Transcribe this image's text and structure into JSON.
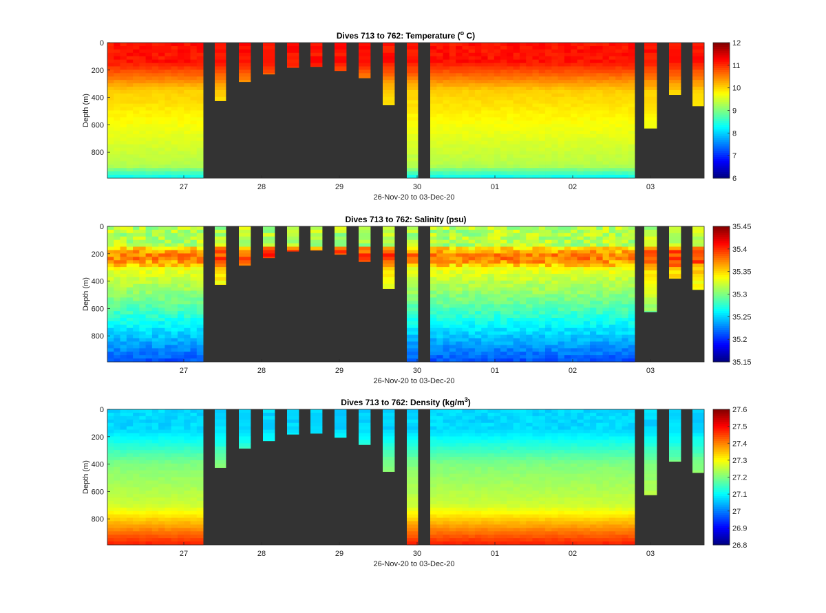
{
  "figure": {
    "date_range_label": "26-Nov-20 to 03-Dec-20",
    "nodata_color": "#333333"
  },
  "chart_data": [
    {
      "type": "heatmap",
      "title": "Dives 713 to 762: Temperature (",
      "title_sup": "o",
      "title_suffix": " C)",
      "ylabel": "Depth (m)",
      "xlabel": "26-Nov-20 to 03-Dec-20",
      "x_ticks": [
        "27",
        "28",
        "29",
        "30",
        "01",
        "02",
        "03"
      ],
      "y_ticks": [
        0,
        200,
        400,
        600,
        800
      ],
      "ylim": [
        990,
        0
      ],
      "colorbar": {
        "min": 6,
        "max": 12,
        "ticks": [
          "12",
          "11",
          "10",
          "9",
          "8",
          "7",
          "6"
        ]
      },
      "profile": {
        "surface": 11.2,
        "mixed_layer_m": 150,
        "mid": 9.8,
        "bottom": 8.3
      }
    },
    {
      "type": "heatmap",
      "title": "Dives 713 to 762: Salinity (psu)",
      "title_sup": "",
      "title_suffix": "",
      "ylabel": "Depth (m)",
      "xlabel": "26-Nov-20 to 03-Dec-20",
      "x_ticks": [
        "27",
        "28",
        "29",
        "30",
        "01",
        "02",
        "03"
      ],
      "y_ticks": [
        0,
        200,
        400,
        600,
        800
      ],
      "ylim": [
        990,
        0
      ],
      "colorbar": {
        "min": 35.15,
        "max": 35.45,
        "ticks": [
          "35.45",
          "35.4",
          "35.35",
          "35.3",
          "35.25",
          "35.2",
          "35.15"
        ]
      },
      "profile": {
        "surface": 35.32,
        "mixed_layer_m": 150,
        "peak": 35.37,
        "peak_depth_m": 250,
        "bottom": 35.21
      }
    },
    {
      "type": "heatmap",
      "title": "Dives 713 to 762: Density (kg/m",
      "title_sup": "3",
      "title_suffix": ")",
      "ylabel": "Depth (m)",
      "xlabel": "26-Nov-20 to 03-Dec-20",
      "x_ticks": [
        "27",
        "28",
        "29",
        "30",
        "01",
        "02",
        "03"
      ],
      "y_ticks": [
        0,
        200,
        400,
        600,
        800
      ],
      "ylim": [
        990,
        0
      ],
      "colorbar": {
        "min": 26.8,
        "max": 27.6,
        "ticks": [
          "27.6",
          "27.5",
          "27.4",
          "27.3",
          "27.2",
          "27.1",
          "27",
          "26.9",
          "26.8"
        ]
      },
      "profile": {
        "surface": 27.07,
        "mixed_layer_m": 150,
        "mid": 27.22,
        "bottom": 27.45
      }
    }
  ]
}
